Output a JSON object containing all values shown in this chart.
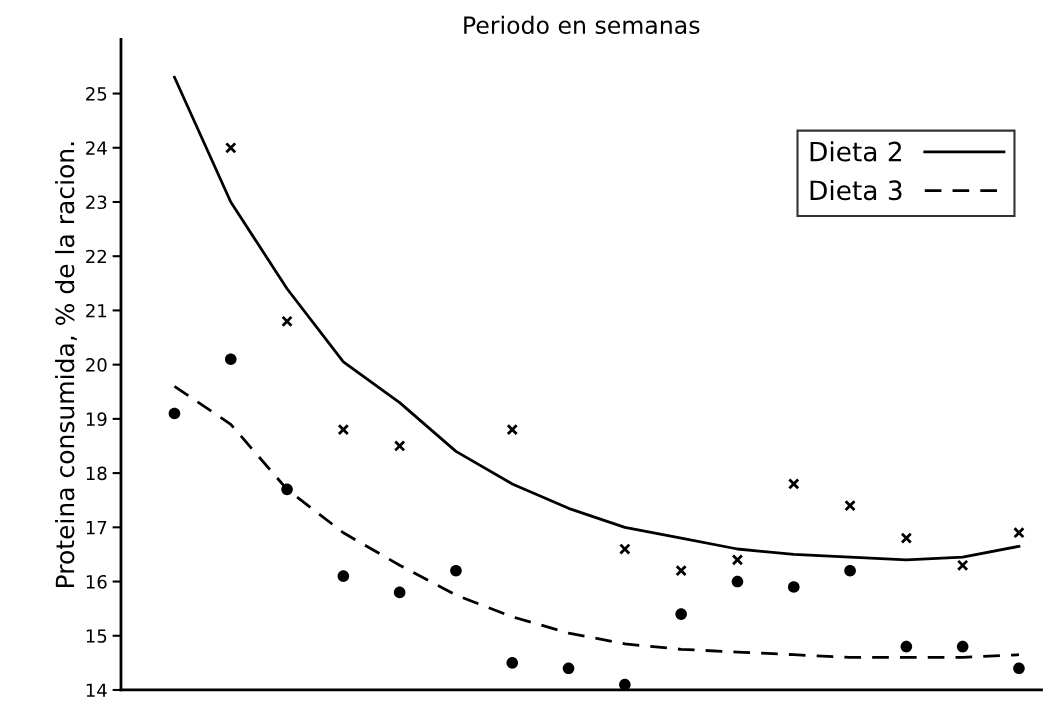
{
  "chart_data": {
    "type": "scatter",
    "xlabel": "Periodo en semanas",
    "ylabel": "Proteina consumida, % de la racion.",
    "categories": [
      null,
      null,
      null,
      null,
      null,
      null,
      null,
      null,
      null,
      null,
      null,
      null,
      null,
      null,
      null,
      null
    ],
    "series": [
      {
        "marker": "cross",
        "color": "#000000",
        "values": [
          null,
          24.0,
          20.8,
          18.8,
          18.5,
          null,
          18.8,
          null,
          16.6,
          16.2,
          16.4,
          17.8,
          17.4,
          16.8,
          16.3,
          16.9
        ]
      },
      {
        "marker": "circle",
        "color": "#000000",
        "values": [
          19.1,
          20.1,
          17.7,
          16.1,
          15.8,
          16.2,
          14.5,
          14.4,
          14.1,
          15.4,
          16.0,
          15.9,
          16.2,
          14.8,
          14.8,
          14.4
        ]
      },
      {
        "type": "line",
        "name": "Dieta 2",
        "line_style": "solid",
        "marker": "none",
        "color": "#000000",
        "values": [
          25.3,
          23.0,
          21.4,
          20.05,
          19.3,
          18.4,
          17.8,
          17.35,
          17.0,
          16.8,
          16.6,
          16.5,
          16.45,
          16.4,
          16.45,
          16.65
        ]
      },
      {
        "type": "line",
        "name": "Dieta 3",
        "line_style": "dashed",
        "marker": "none",
        "color": "#000000",
        "values": [
          19.6,
          18.9,
          17.7,
          16.9,
          16.3,
          15.75,
          15.35,
          15.05,
          14.85,
          14.75,
          14.7,
          14.65,
          14.6,
          14.6,
          14.6,
          14.65
        ]
      }
    ],
    "ylim": [
      14,
      26
    ],
    "yticks": [
      14,
      15,
      16,
      17,
      18,
      19,
      20,
      21,
      22,
      23,
      24,
      25
    ],
    "tick_labels": "y",
    "grid": false,
    "legend": "top right"
  }
}
